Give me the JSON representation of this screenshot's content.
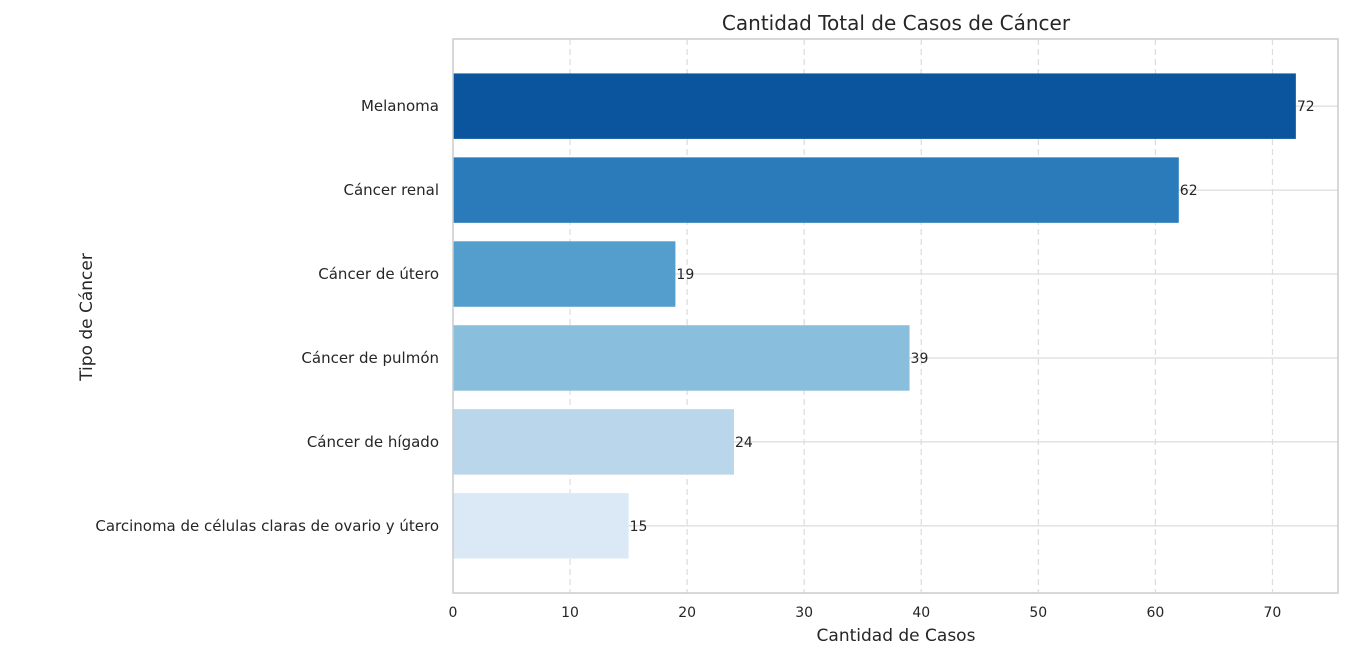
{
  "chart_data": {
    "type": "bar",
    "orientation": "horizontal",
    "title": "Cantidad Total de Casos de Cáncer",
    "xlabel": "Cantidad de Casos",
    "ylabel": "Tipo de Cáncer",
    "categories": [
      "Melanoma",
      "Cáncer renal",
      "Cáncer de útero",
      "Cáncer de pulmón",
      "Cáncer de hígado",
      "Carcinoma de células claras de ovario y útero"
    ],
    "values": [
      72,
      62,
      19,
      39,
      24,
      15
    ],
    "data_labels": [
      "72",
      "62",
      "19",
      "39",
      "24",
      "15"
    ],
    "colors": [
      "#0b559f",
      "#2b7bba",
      "#539ecd",
      "#89bedc",
      "#bad6eb",
      "#dbe9f6"
    ],
    "xlim": [
      0,
      75.6
    ],
    "xticks": [
      0,
      10,
      20,
      30,
      40,
      50,
      60,
      70
    ],
    "xtick_labels": [
      "0",
      "10",
      "20",
      "30",
      "40",
      "50",
      "60",
      "70"
    ],
    "grid": {
      "x": "dashed",
      "y": "solid"
    },
    "grid_color": "#dcdcdc",
    "axes_edge_color": "#cccccc",
    "legend": "none"
  }
}
